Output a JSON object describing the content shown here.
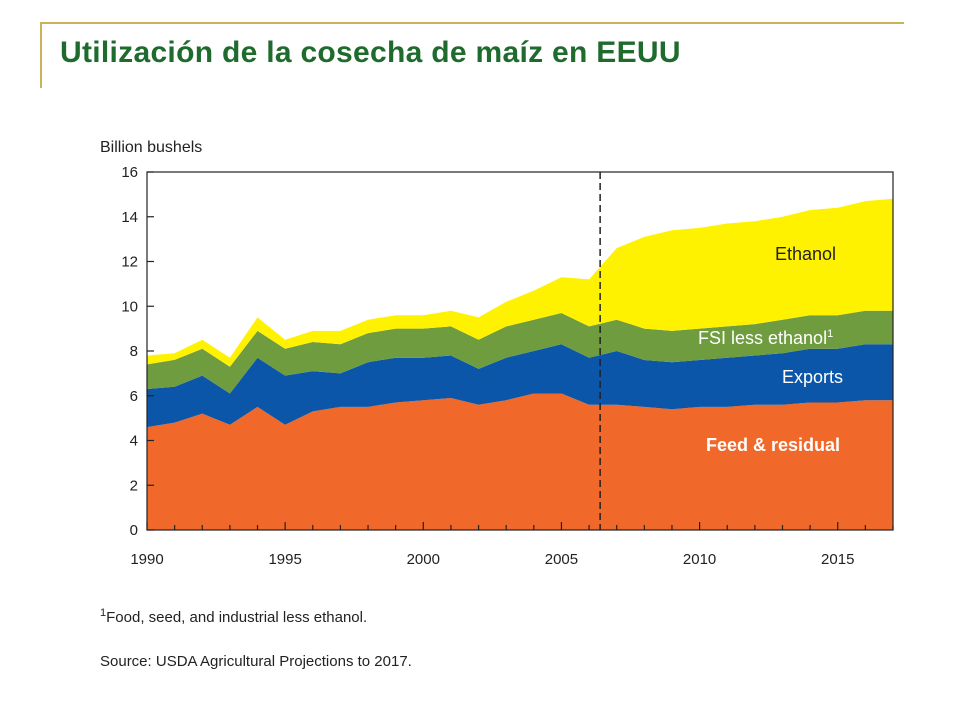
{
  "slide": {
    "title": "Utilización de la cosecha de maíz en EEUU"
  },
  "chart_data": {
    "type": "area",
    "stacked": true,
    "unit_label": "Billion bushels",
    "ylim": [
      0,
      16
    ],
    "yticks": [
      0,
      2,
      4,
      6,
      8,
      10,
      12,
      14,
      16
    ],
    "xlim": [
      1990,
      2017
    ],
    "xticks": [
      1990,
      1995,
      2000,
      2005,
      2010,
      2015
    ],
    "projection_start": 2006.4,
    "x": [
      1990,
      1991,
      1992,
      1993,
      1994,
      1995,
      1996,
      1997,
      1998,
      1999,
      2000,
      2001,
      2002,
      2003,
      2004,
      2005,
      2006,
      2007,
      2008,
      2009,
      2010,
      2011,
      2012,
      2013,
      2014,
      2015,
      2016,
      2017
    ],
    "series": [
      {
        "name": "Feed & residual",
        "color": "#f0682a",
        "values": [
          4.6,
          4.8,
          5.2,
          4.7,
          5.5,
          4.7,
          5.3,
          5.5,
          5.5,
          5.7,
          5.8,
          5.9,
          5.6,
          5.8,
          6.1,
          6.1,
          5.6,
          5.6,
          5.5,
          5.4,
          5.5,
          5.5,
          5.6,
          5.6,
          5.7,
          5.7,
          5.8,
          5.8
        ]
      },
      {
        "name": "Exports",
        "color": "#0b56a8",
        "values": [
          1.7,
          1.6,
          1.7,
          1.4,
          2.2,
          2.2,
          1.8,
          1.5,
          2.0,
          2.0,
          1.9,
          1.9,
          1.6,
          1.9,
          1.9,
          2.2,
          2.1,
          2.4,
          2.1,
          2.1,
          2.1,
          2.2,
          2.2,
          2.3,
          2.4,
          2.4,
          2.5,
          2.5
        ]
      },
      {
        "name": "FSI less ethanol",
        "footnote_marker": "1",
        "color": "#6f9c3e",
        "values": [
          1.1,
          1.2,
          1.2,
          1.2,
          1.2,
          1.2,
          1.3,
          1.3,
          1.3,
          1.3,
          1.3,
          1.3,
          1.3,
          1.4,
          1.4,
          1.4,
          1.4,
          1.4,
          1.4,
          1.4,
          1.4,
          1.4,
          1.4,
          1.5,
          1.5,
          1.5,
          1.5,
          1.5
        ]
      },
      {
        "name": "Ethanol",
        "color": "#fff200",
        "values": [
          0.4,
          0.3,
          0.4,
          0.4,
          0.6,
          0.4,
          0.5,
          0.6,
          0.6,
          0.6,
          0.6,
          0.7,
          1.0,
          1.1,
          1.3,
          1.6,
          2.1,
          3.2,
          4.1,
          4.5,
          4.5,
          4.6,
          4.6,
          4.6,
          4.7,
          4.8,
          4.9,
          5.0
        ]
      }
    ],
    "footnote": "Food, seed, and industrial less ethanol.",
    "source": "Source: USDA Agricultural Projections to 2017.",
    "grid": false,
    "legend": "inline labels"
  }
}
